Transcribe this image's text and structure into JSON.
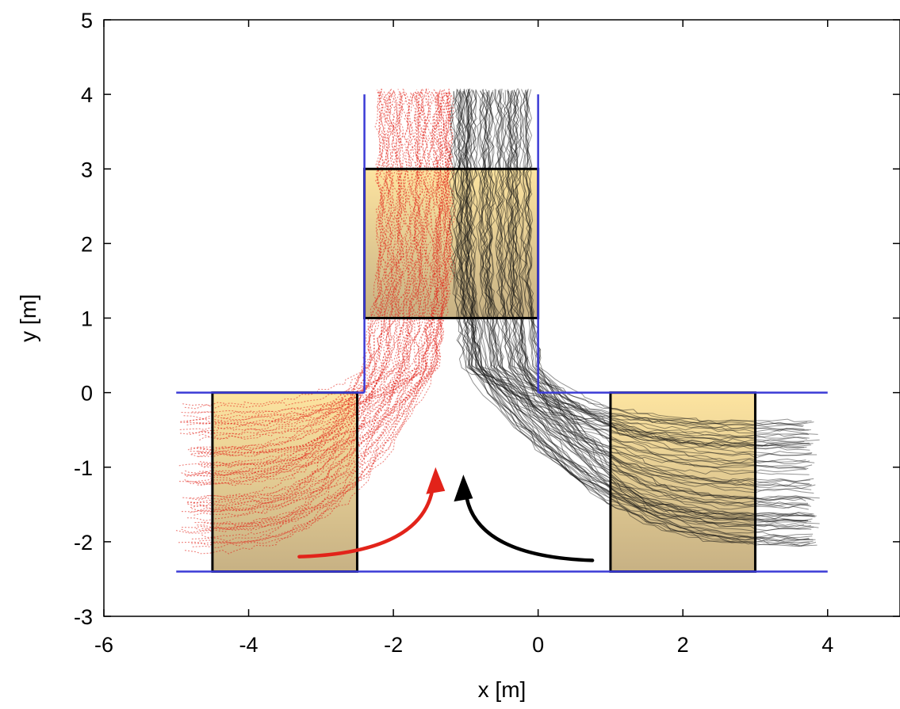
{
  "chart_data": {
    "type": "line",
    "title": "",
    "xlabel": "x [m]",
    "ylabel": "y [m]",
    "xlim": [
      -6,
      5
    ],
    "ylim": [
      -3,
      5
    ],
    "x_ticks": [
      -6,
      -4,
      -2,
      0,
      2,
      4
    ],
    "y_ticks": [
      -3,
      -2,
      -1,
      0,
      1,
      2,
      3,
      4,
      5
    ],
    "grid": false,
    "legend": "none",
    "walls": [
      {
        "name": "left-corridor-top-wall",
        "x": [
          -5,
          -2.4
        ],
        "y": [
          0,
          0
        ]
      },
      {
        "name": "right-corridor-top-wall",
        "x": [
          0,
          4
        ],
        "y": [
          0,
          0
        ]
      },
      {
        "name": "corridor-bottom-wall",
        "x": [
          -5,
          4
        ],
        "y": [
          -2.4,
          -2.4
        ]
      },
      {
        "name": "branch-left-wall",
        "x": [
          -2.4,
          -2.4
        ],
        "y": [
          0,
          4
        ]
      },
      {
        "name": "branch-right-wall",
        "x": [
          0,
          0
        ],
        "y": [
          0,
          4
        ]
      }
    ],
    "measurement_regions": [
      {
        "name": "left-region",
        "x": [
          -4.5,
          -2.5
        ],
        "y": [
          -2.4,
          0
        ]
      },
      {
        "name": "top-region",
        "x": [
          -2.4,
          0
        ],
        "y": [
          1,
          3
        ]
      },
      {
        "name": "right-region",
        "x": [
          1,
          3
        ],
        "y": [
          -2.4,
          0
        ]
      }
    ],
    "series": [
      {
        "color": "#e2231a",
        "style": "dotted",
        "from": "left corridor",
        "to": "branch",
        "x_range": [
          -5,
          -1.2
        ],
        "y_range": [
          -2.2,
          4.1
        ]
      },
      {
        "color": "#111111",
        "style": "solid",
        "from": "right corridor",
        "to": "branch",
        "x_range": [
          -1.3,
          3.9
        ],
        "y_range": [
          -2.1,
          4.1
        ]
      }
    ],
    "arrows": [
      {
        "color": "#e2231a",
        "from": [
          -3.3,
          -2.2
        ],
        "to": [
          -1.45,
          -1.0
        ]
      },
      {
        "color": "#000000",
        "from": [
          0.75,
          -2.25
        ],
        "to": [
          -1.0,
          -1.1
        ]
      }
    ]
  },
  "colors": {
    "wall": "#3b3bd6",
    "region_top": "#fde4a0",
    "region_bottom": "#c7b184",
    "red_traj": "#e2231a",
    "black_traj": "#111111"
  }
}
